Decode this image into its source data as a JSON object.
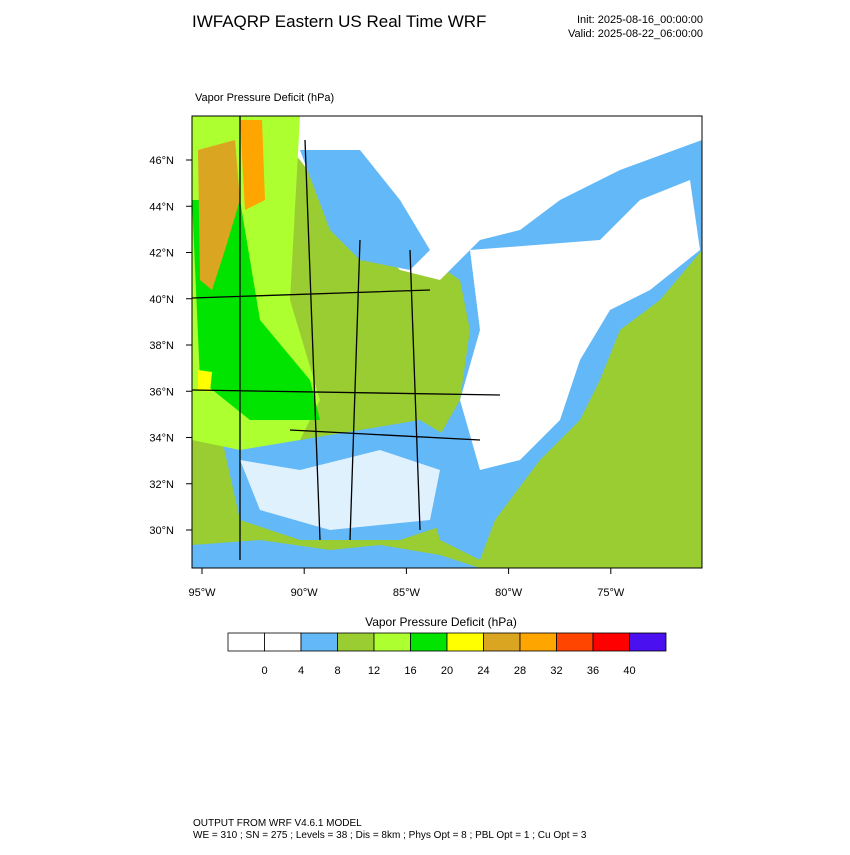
{
  "header": {
    "title": "IWFAQRP Eastern US Real Time WRF",
    "init": "Init: 2025-08-16_00:00:00",
    "valid": "Valid: 2025-08-22_06:00:00"
  },
  "map": {
    "label": "Vapor Pressure Deficit   (hPa)",
    "lat_labels": [
      "46°N",
      "44°N",
      "42°N",
      "40°N",
      "38°N",
      "36°N",
      "34°N",
      "32°N",
      "30°N"
    ],
    "lon_labels": [
      "95°W",
      "90°W",
      "85°W",
      "80°W",
      "75°W"
    ]
  },
  "colorbar": {
    "title": "Vapor Pressure Deficit  (hPa)",
    "colors": [
      "#ffffff",
      "#ffffff",
      "#63b8f8",
      "#9acd32",
      "#adff2f",
      "#00e400",
      "#ffff00",
      "#daa520",
      "#ffa500",
      "#ff4500",
      "#ff0000",
      "#4a10f0"
    ],
    "levels": [
      0,
      4,
      8,
      12,
      16,
      20,
      24,
      28,
      32,
      36,
      40
    ]
  },
  "footer": {
    "line1": "OUTPUT FROM WRF V4.6.1 MODEL",
    "line2": "WE = 310 ; SN = 275 ; Levels = 38 ; Dis = 8km ; Phys Opt = 8 ; PBL Opt = 1 ; Cu Opt = 3"
  }
}
